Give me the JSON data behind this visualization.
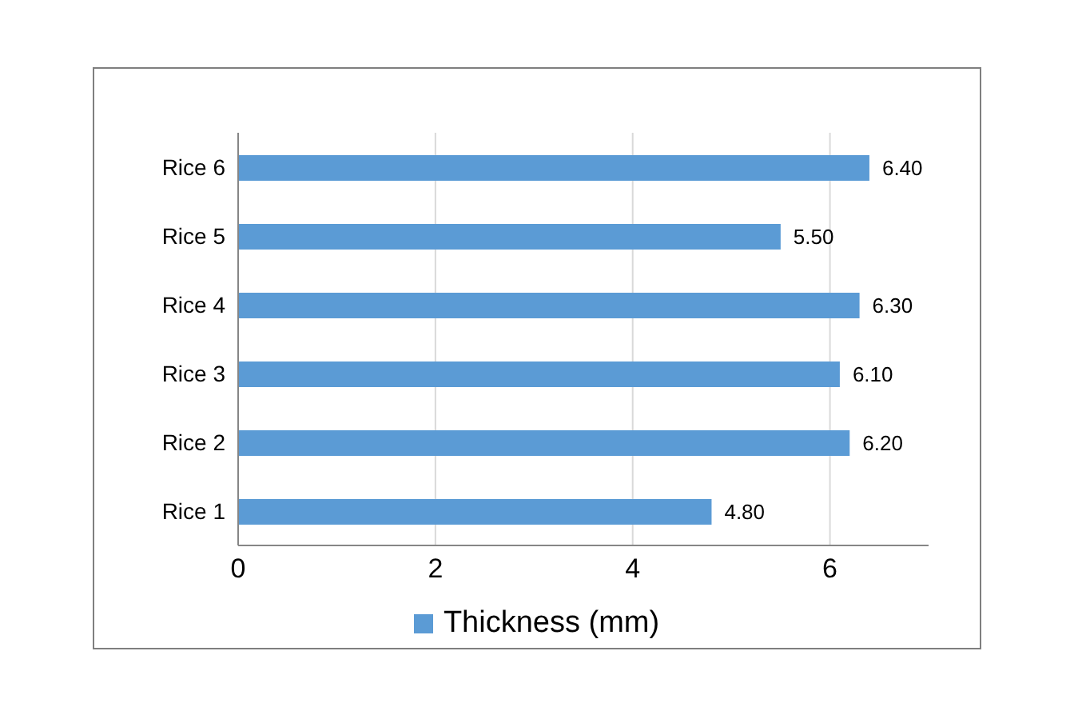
{
  "chart_data": {
    "type": "bar",
    "orientation": "horizontal",
    "categories": [
      "Rice 6",
      "Rice 5",
      "Rice 4",
      "Rice 3",
      "Rice 2",
      "Rice 1"
    ],
    "series": [
      {
        "name": "Thickness (mm)",
        "color": "#5b9bd5",
        "values": [
          6.4,
          5.5,
          6.3,
          6.1,
          6.2,
          4.8
        ],
        "value_labels": [
          "6.40",
          "5.50",
          "6.30",
          "6.10",
          "6.20",
          "4.80"
        ]
      }
    ],
    "xlim": [
      0,
      7
    ],
    "xticks": [
      0,
      2,
      4,
      6
    ],
    "grid": "x",
    "legend": "bottom"
  }
}
